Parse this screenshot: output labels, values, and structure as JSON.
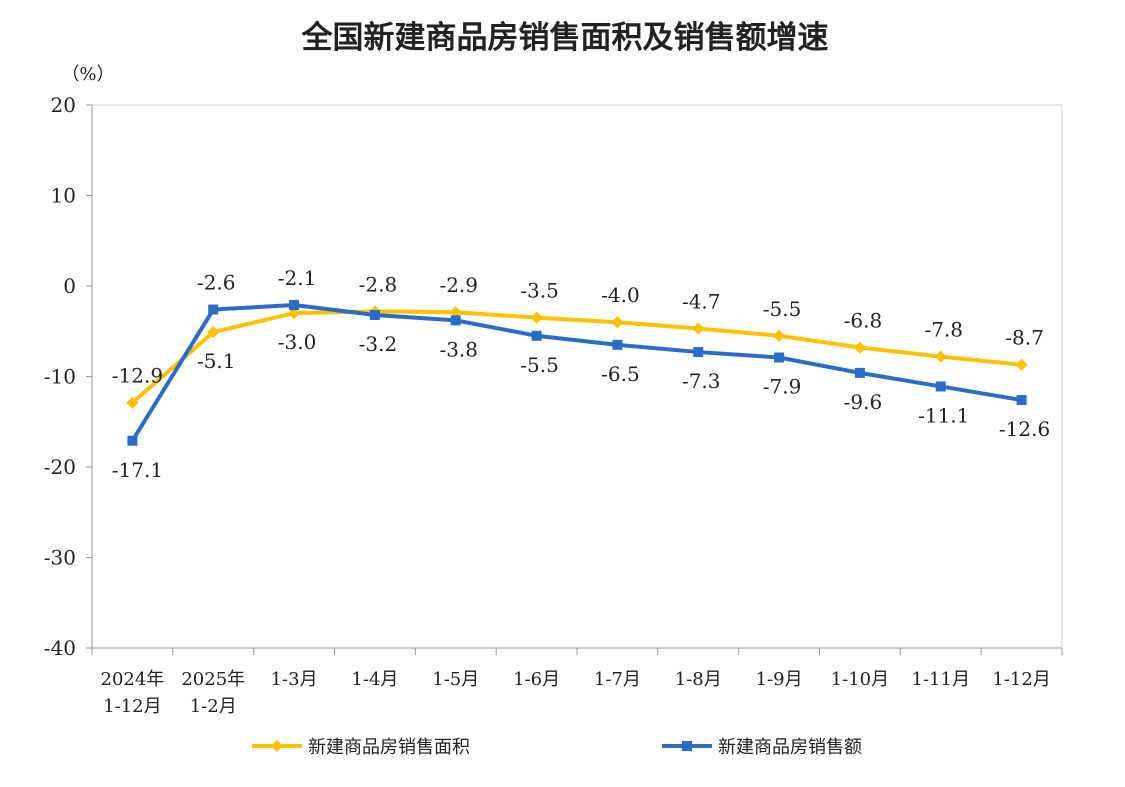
{
  "chart_data": {
    "type": "line",
    "title": "全国新建商品房销售面积及销售额增速",
    "ylabel": "（%）",
    "xlabel": "",
    "ylim": [
      -40,
      20
    ],
    "yticks": [
      20,
      10,
      0,
      -10,
      -20,
      -30,
      -40
    ],
    "grid": false,
    "legend_position": "bottom",
    "categories": [
      [
        "2024年",
        "1-12月"
      ],
      [
        "2025年",
        "1-2月"
      ],
      [
        "1-3月"
      ],
      [
        "1-4月"
      ],
      [
        "1-5月"
      ],
      [
        "1-6月"
      ],
      [
        "1-7月"
      ],
      [
        "1-8月"
      ],
      [
        "1-9月"
      ],
      [
        "1-10月"
      ],
      [
        "1-11月"
      ],
      [
        "1-12月"
      ]
    ],
    "series": [
      {
        "name": "新建商品房销售面积",
        "color": "#FFC000",
        "marker": "diamond",
        "values": [
          -12.9,
          -5.1,
          -3.0,
          -2.8,
          -2.9,
          -3.5,
          -4.0,
          -4.7,
          -5.5,
          -6.8,
          -7.8,
          -8.7
        ]
      },
      {
        "name": "新建商品房销售额",
        "color": "#2A6CC8",
        "marker": "square",
        "values": [
          -17.1,
          -2.6,
          -2.1,
          -3.2,
          -3.8,
          -5.5,
          -6.5,
          -7.3,
          -7.9,
          -9.6,
          -11.1,
          -12.6
        ]
      }
    ]
  }
}
